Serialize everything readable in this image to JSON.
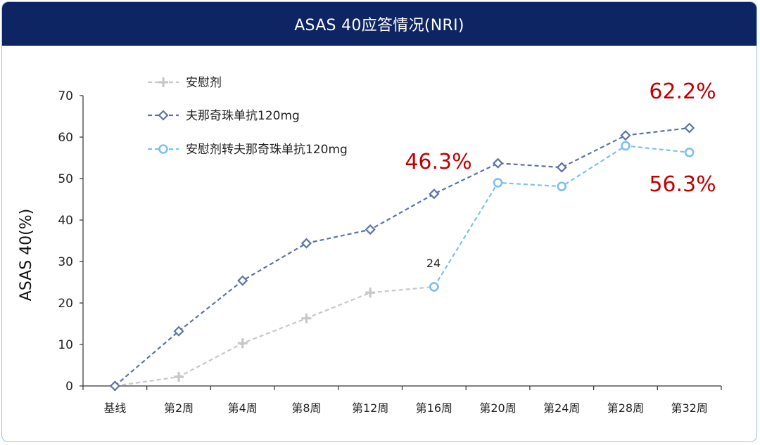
{
  "header": {
    "title": "ASAS 40应答情况(NRI)"
  },
  "chart_data": {
    "type": "line",
    "title": "ASAS 40应答情况(NRI)",
    "ylabel": "ASAS 40(%)",
    "xlabel": "",
    "ylim": [
      0,
      70
    ],
    "yticks": [
      "0",
      "10",
      "20",
      "30",
      "40",
      "50",
      "60",
      "70"
    ],
    "categories": [
      "基线",
      "第2周",
      "第4周",
      "第8周",
      "第12周",
      "第16周",
      "第20周",
      "第24周",
      "第28周",
      "第32周"
    ],
    "grid": false,
    "legend_position": "top-left",
    "series": [
      {
        "name": "安慰剂",
        "color": "#c8c8c8",
        "marker": "plus",
        "values": [
          0,
          2.2,
          10.3,
          16.3,
          22.5,
          23.9,
          null,
          null,
          null,
          null
        ]
      },
      {
        "name": "夫那奇珠单抗120mg",
        "color": "#5a74a8",
        "marker": "diamond",
        "values": [
          0,
          13.2,
          25.4,
          34.4,
          37.7,
          46.3,
          53.7,
          52.7,
          60.4,
          62.2
        ]
      },
      {
        "name": "安慰剂转夫那奇珠单抗120mg",
        "color": "#7cc0ee",
        "marker": "circle",
        "values": [
          null,
          null,
          null,
          null,
          null,
          23.9,
          49.0,
          48.1,
          57.9,
          56.3
        ]
      }
    ],
    "annotations": [
      {
        "text": "24",
        "color": "#222222"
      },
      {
        "text": "46.3%",
        "color": "#c00000"
      },
      {
        "text": "62.2%",
        "color": "#c00000"
      },
      {
        "text": "56.3%",
        "color": "#c00000"
      }
    ]
  }
}
